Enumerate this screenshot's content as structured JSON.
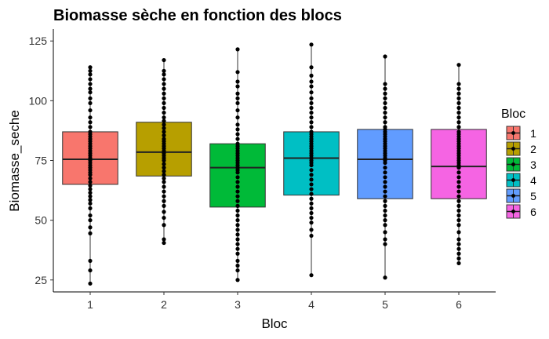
{
  "chart_data": {
    "type": "boxplot",
    "title": "Biomasse sèche en fonction des blocs",
    "xlabel": "Bloc",
    "ylabel": "Biomasse_seche",
    "ylim": [
      20,
      130
    ],
    "yticks": [
      25,
      50,
      75,
      100,
      125
    ],
    "categories": [
      "1",
      "2",
      "3",
      "4",
      "5",
      "6"
    ],
    "legend": {
      "title": "Bloc",
      "position": "right",
      "entries": [
        "1",
        "2",
        "3",
        "4",
        "5",
        "6"
      ]
    },
    "grid": false,
    "series": [
      {
        "name": "1",
        "color": "#F8766D",
        "whisker_low": 23.5,
        "q1": 65,
        "median": 75.5,
        "q3": 87,
        "whisker_high": 114,
        "points": [
          23.5,
          29,
          33,
          44.5,
          47,
          50,
          52,
          55,
          57,
          58.5,
          60,
          61.5,
          63,
          64.5,
          66,
          67.5,
          69,
          70,
          71,
          72,
          73,
          74,
          75,
          76,
          77,
          78,
          79,
          80,
          81,
          82,
          83,
          84,
          85,
          86,
          87,
          89,
          91,
          93,
          96,
          99,
          101,
          103.5,
          105,
          107,
          109,
          111,
          112.5,
          114
        ]
      },
      {
        "name": "2",
        "color": "#B79F00",
        "whisker_low": 40.5,
        "q1": 68.5,
        "median": 78.5,
        "q3": 91,
        "whisker_high": 117,
        "points": [
          40.5,
          42,
          48,
          51,
          53.5,
          56,
          58,
          60,
          62,
          64,
          66,
          67.5,
          69,
          70.5,
          72,
          73.5,
          75,
          76,
          77,
          78,
          79,
          80,
          81,
          82,
          83,
          84,
          85.5,
          87,
          88.5,
          90,
          91.5,
          93,
          95,
          97,
          99,
          101,
          103,
          105,
          107,
          109,
          111,
          112.5,
          117
        ]
      },
      {
        "name": "3",
        "color": "#00BA38",
        "whisker_low": 25,
        "q1": 55.5,
        "median": 72,
        "q3": 82,
        "whisker_high": 121.5,
        "points": [
          25,
          29,
          31,
          33,
          36,
          38,
          40,
          42,
          44,
          46,
          48,
          50,
          52,
          54,
          56,
          58,
          60,
          62,
          64,
          66,
          68,
          70,
          71,
          72,
          73,
          74,
          75,
          76,
          77,
          78,
          79,
          80,
          81,
          82,
          84,
          86,
          88,
          90,
          93,
          96,
          99,
          101,
          103,
          106,
          108,
          112,
          121.5
        ]
      },
      {
        "name": "4",
        "color": "#00BFC4",
        "whisker_low": 27,
        "q1": 60.5,
        "median": 76,
        "q3": 87,
        "whisker_high": 123.5,
        "points": [
          27,
          43.5,
          46,
          49,
          51,
          53,
          55,
          57,
          59,
          61,
          63,
          65,
          67,
          69,
          71,
          73,
          74,
          75,
          76,
          77,
          78,
          79,
          80,
          81,
          82,
          83,
          84,
          85,
          86,
          87,
          89,
          91,
          93,
          95,
          97,
          99,
          101,
          103.5,
          106,
          108,
          110.5,
          114,
          123.5
        ]
      },
      {
        "name": "5",
        "color": "#619CFF",
        "whisker_low": 26,
        "q1": 59,
        "median": 75.5,
        "q3": 88,
        "whisker_high": 118.5,
        "points": [
          26,
          40,
          42,
          45,
          48,
          50,
          52,
          54,
          56,
          58,
          60,
          62,
          64,
          66,
          68,
          70,
          72,
          74,
          75,
          76,
          77,
          78,
          79,
          80,
          81,
          82,
          83,
          84,
          85,
          86,
          87,
          88,
          89,
          91,
          93,
          95,
          97,
          99,
          101,
          103,
          105,
          107,
          118.5
        ]
      },
      {
        "name": "6",
        "color": "#F564E3",
        "whisker_low": 32,
        "q1": 59,
        "median": 72.5,
        "q3": 88,
        "whisker_high": 115,
        "points": [
          32,
          34,
          36,
          38,
          40,
          42,
          45,
          48,
          50,
          52,
          54,
          56,
          58,
          60,
          62,
          64,
          66,
          68,
          70,
          72,
          73,
          74,
          75,
          76,
          77,
          78,
          79,
          80,
          81,
          82,
          83,
          84,
          85,
          86,
          87,
          89,
          91,
          93,
          95,
          97,
          99,
          101,
          103,
          105,
          107,
          115
        ]
      }
    ]
  }
}
